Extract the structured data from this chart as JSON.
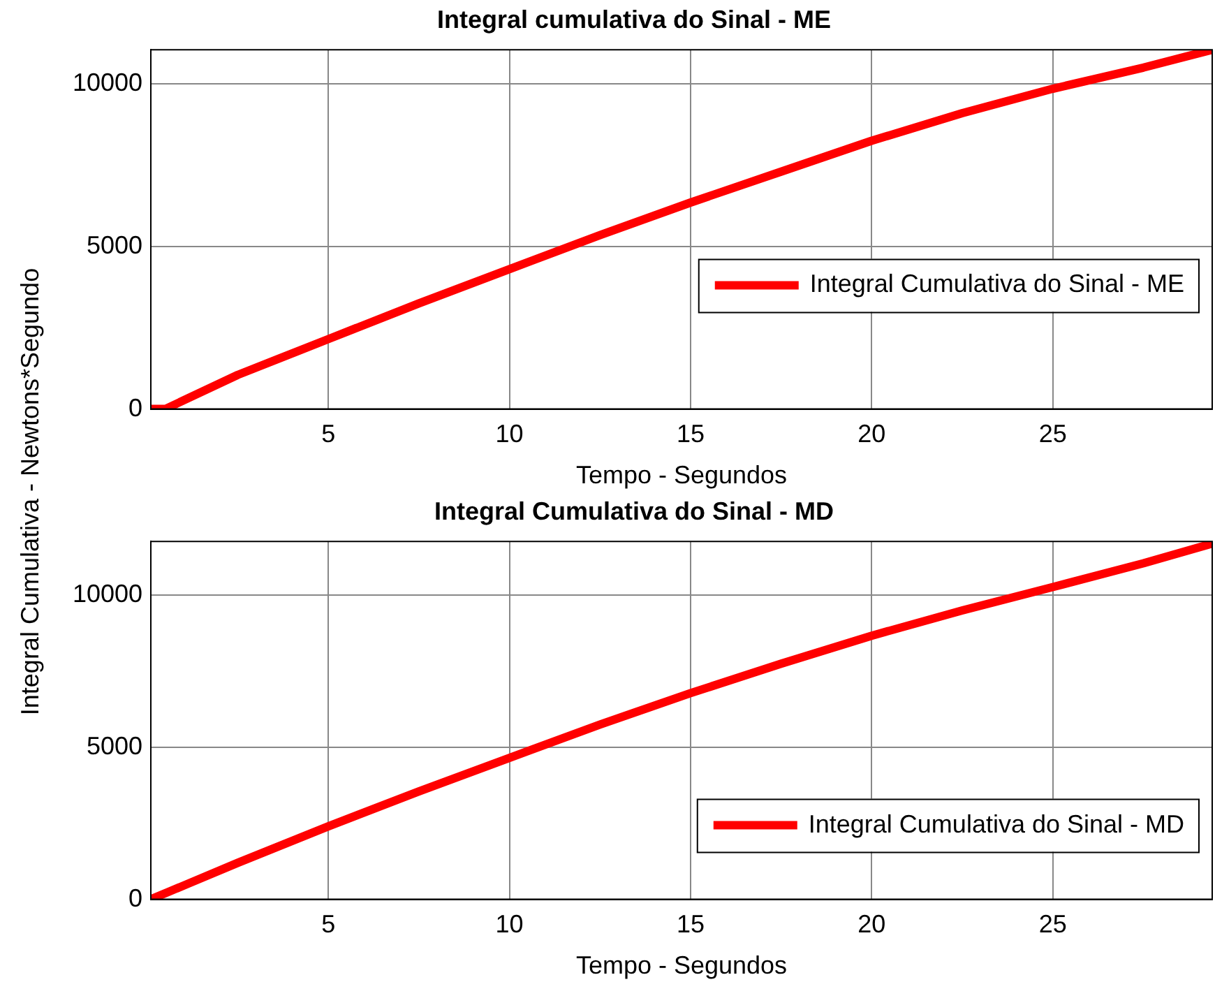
{
  "chart_data": [
    {
      "type": "line",
      "title": "Integral cumulativa do Sinal - ME",
      "xlabel": "Tempo - Segundos",
      "ylabel": "Integral Cumulativa - Newtons*Segundo",
      "x": [
        0.1,
        0.5,
        2.5,
        5,
        7.5,
        10,
        12.5,
        15,
        17.5,
        20,
        22.5,
        25,
        27.5,
        29.4
      ],
      "series": [
        {
          "name": "Integral Cumulativa do Sinal - ME",
          "color": "#ff0000",
          "values": [
            0,
            0,
            1050,
            2150,
            3250,
            4300,
            5350,
            6350,
            7300,
            8250,
            9100,
            9850,
            10500,
            11050
          ]
        }
      ],
      "xlim": [
        0.1,
        29.4
      ],
      "xticks": [
        5,
        10,
        15,
        20,
        25
      ],
      "ylim": [
        0,
        11050
      ],
      "yticks": [
        0,
        5000,
        10000
      ],
      "grid": true,
      "legend": "right",
      "marker": "none",
      "line_style": "solid"
    },
    {
      "type": "line",
      "title": "Integral Cumulativa do Sinal - MD",
      "xlabel": "Tempo - Segundos",
      "x": [
        0.1,
        2.5,
        5,
        7.5,
        10,
        12.5,
        15,
        17.5,
        20,
        22.5,
        25,
        27.5,
        29.4
      ],
      "series": [
        {
          "name": "Integral Cumulativa do Sinal - MD",
          "color": "#ff0000",
          "values": [
            0,
            1200,
            2400,
            3550,
            4650,
            5750,
            6780,
            7750,
            8670,
            9500,
            10270,
            11050,
            11700
          ]
        }
      ],
      "xlim": [
        0.1,
        29.4
      ],
      "xticks": [
        5,
        10,
        15,
        20,
        25
      ],
      "ylim": [
        0,
        11770
      ],
      "yticks": [
        0,
        5000,
        10000
      ],
      "grid": true,
      "legend": "bottom right",
      "marker": "none",
      "line_style": "solid"
    }
  ]
}
